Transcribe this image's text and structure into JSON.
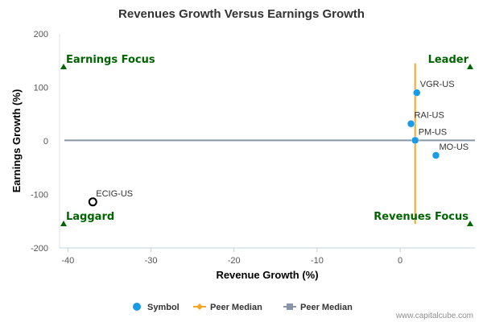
{
  "chart_data": {
    "type": "scatter",
    "title": "Revenues Growth Versus Earnings Growth",
    "xlabel": "Revenue Growth (%)",
    "ylabel": "Earnings Growth (%)",
    "xlim": [
      -41,
      9
    ],
    "ylim": [
      -200,
      200
    ],
    "xticks": [
      -40,
      -30,
      -20,
      -10,
      0
    ],
    "yticks": [
      -200,
      -100,
      0,
      100,
      200
    ],
    "grid": false,
    "points": [
      {
        "label": "VGR-US",
        "x": 2.0,
        "y": 90,
        "style": "filled",
        "color": "#1a9be6"
      },
      {
        "label": "RAI-US",
        "x": 1.3,
        "y": 32,
        "style": "filled",
        "color": "#1a9be6"
      },
      {
        "label": "PM-US",
        "x": 1.8,
        "y": 1,
        "style": "filled",
        "color": "#1a9be6"
      },
      {
        "label": "MO-US",
        "x": 4.3,
        "y": -27,
        "style": "filled",
        "color": "#1a9be6"
      },
      {
        "label": "ECIG-US",
        "x": -37,
        "y": -114,
        "style": "hollow",
        "color": "#000000"
      }
    ],
    "peer_median_revenue_growth": 1.8,
    "peer_median_earnings_growth": 1,
    "quadrant_labels": [
      {
        "text": "Earnings Focus",
        "position": "top-left"
      },
      {
        "text": "Leader",
        "position": "top-right"
      },
      {
        "text": "Laggard",
        "position": "bottom-left"
      },
      {
        "text": "Revenues Focus",
        "position": "bottom-right"
      }
    ],
    "legend": {
      "position": "bottom",
      "items": [
        {
          "label": "Symbol",
          "marker": "circle",
          "color": "#1a9be6"
        },
        {
          "label": "Peer Median",
          "marker": "diamond-line",
          "color": "#f5a623"
        },
        {
          "label": "Peer Median",
          "marker": "square-line",
          "color": "#8896a8"
        }
      ]
    },
    "colors": {
      "symbol": "#1a9be6",
      "peer_median_vertical": "#f5a623",
      "peer_median_horizontal": "#8896a8",
      "quadrant": "#006400"
    }
  },
  "credit": "www.capitalcube.com"
}
